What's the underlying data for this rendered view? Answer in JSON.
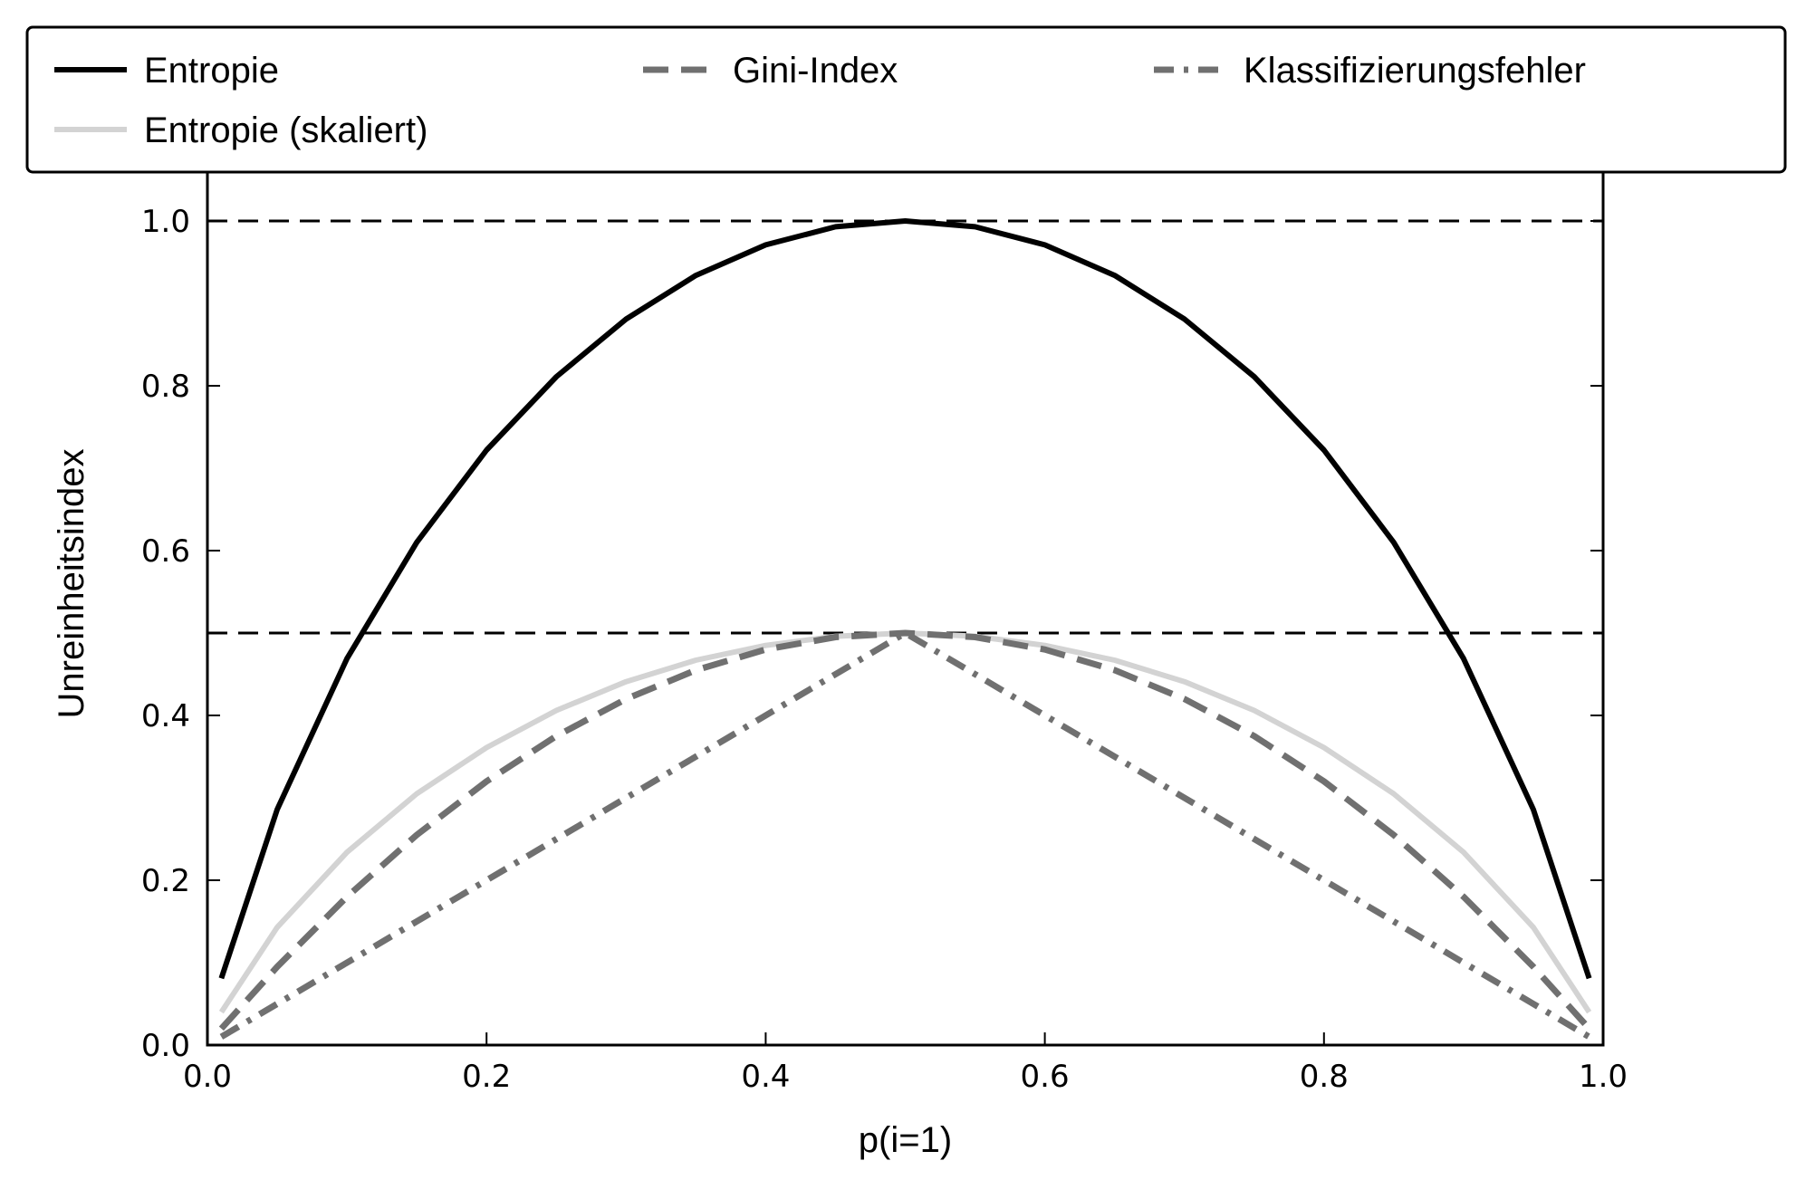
{
  "chart_data": {
    "type": "line",
    "title": "",
    "xlabel": "p(i=1)",
    "ylabel": "Unreinheitsindex",
    "xlim": [
      0.0,
      1.0
    ],
    "ylim": [
      0.0,
      1.0
    ],
    "xticks": [
      "0.0",
      "0.2",
      "0.4",
      "0.6",
      "0.8",
      "1.0"
    ],
    "yticks": [
      "0.0",
      "0.2",
      "0.4",
      "0.6",
      "0.8",
      "1.0"
    ],
    "x": [
      0.01,
      0.05,
      0.1,
      0.15,
      0.2,
      0.25,
      0.3,
      0.35,
      0.4,
      0.45,
      0.5,
      0.55,
      0.6,
      0.65,
      0.7,
      0.75,
      0.8,
      0.85,
      0.9,
      0.95,
      0.99
    ],
    "series": [
      {
        "name": "Entropie",
        "color": "#000000",
        "style": "solid",
        "values": [
          0.081,
          0.286,
          0.469,
          0.61,
          0.722,
          0.811,
          0.881,
          0.934,
          0.971,
          0.993,
          1.0,
          0.993,
          0.971,
          0.934,
          0.881,
          0.811,
          0.722,
          0.61,
          0.469,
          0.286,
          0.081
        ]
      },
      {
        "name": "Entropie (skaliert)",
        "color": "#d3d3d3",
        "style": "solid",
        "values": [
          0.04,
          0.143,
          0.234,
          0.305,
          0.361,
          0.406,
          0.441,
          0.467,
          0.485,
          0.496,
          0.5,
          0.496,
          0.485,
          0.467,
          0.441,
          0.406,
          0.361,
          0.305,
          0.234,
          0.143,
          0.04
        ]
      },
      {
        "name": "Gini-Index",
        "color": "#707070",
        "style": "dashed",
        "values": [
          0.02,
          0.095,
          0.18,
          0.255,
          0.32,
          0.375,
          0.42,
          0.455,
          0.48,
          0.495,
          0.5,
          0.495,
          0.48,
          0.455,
          0.42,
          0.375,
          0.32,
          0.255,
          0.18,
          0.095,
          0.02
        ]
      },
      {
        "name": "Klassifizierungsfehler",
        "color": "#707070",
        "style": "dashdot",
        "values": [
          0.01,
          0.05,
          0.1,
          0.15,
          0.2,
          0.25,
          0.3,
          0.35,
          0.4,
          0.45,
          0.5,
          0.45,
          0.4,
          0.35,
          0.3,
          0.25,
          0.2,
          0.15,
          0.1,
          0.05,
          0.01
        ]
      }
    ],
    "reference_lines": [
      {
        "y": 1.0,
        "style": "dashed",
        "color": "#000000"
      },
      {
        "y": 0.5,
        "style": "dashed",
        "color": "#000000"
      }
    ],
    "legend": {
      "placement": "top",
      "entries": [
        "Entropie",
        "Gini-Index",
        "Klassifizierungsfehler",
        "Entropie (skaliert)"
      ]
    },
    "grid": false
  }
}
